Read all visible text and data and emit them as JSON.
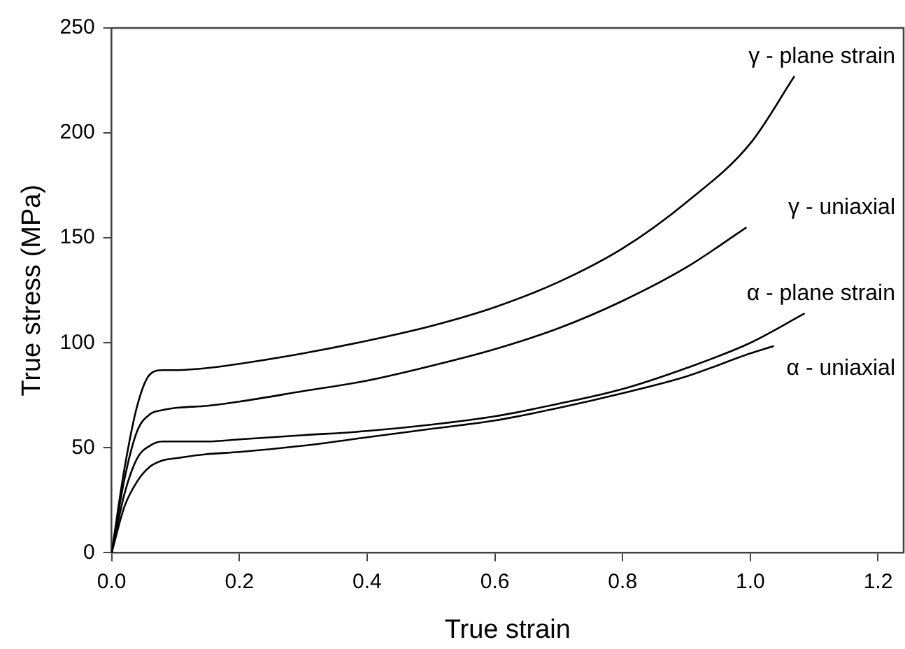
{
  "chart_data": {
    "type": "line",
    "xlabel": "True strain",
    "ylabel": "True stress (MPa)",
    "xlim": [
      0,
      1.24
    ],
    "xticks": [
      {
        "value": 0,
        "label": "0.0"
      },
      0.2,
      0.4,
      0.6,
      0.8,
      {
        "value": 1,
        "label": "1.0"
      },
      1.2
    ],
    "ylim": [
      0,
      250
    ],
    "yticks": [
      0,
      50,
      100,
      150,
      200,
      250
    ],
    "grid": false,
    "legend": false,
    "marker": "none",
    "line_style": "solid",
    "series": [
      {
        "name": "γ - plane strain",
        "color": "#000000",
        "x": [
          0,
          0.02,
          0.04,
          0.06,
          0.08,
          0.1,
          0.15,
          0.2,
          0.3,
          0.4,
          0.5,
          0.6,
          0.7,
          0.8,
          0.9,
          1.0,
          1.069
        ],
        "values": [
          0,
          40,
          70,
          85,
          87,
          87,
          88,
          90,
          95,
          101,
          108,
          117,
          129,
          145,
          167,
          195,
          227
        ]
      },
      {
        "name": "γ - uniaxial",
        "color": "#000000",
        "x": [
          0,
          0.02,
          0.04,
          0.06,
          0.08,
          0.1,
          0.15,
          0.2,
          0.3,
          0.4,
          0.5,
          0.6,
          0.7,
          0.8,
          0.9,
          0.994
        ],
        "values": [
          0,
          35,
          58,
          66,
          68,
          69,
          70,
          72,
          77,
          82,
          89,
          97,
          107,
          120,
          136,
          155
        ]
      },
      {
        "name": "α - plane strain",
        "color": "#000000",
        "x": [
          0,
          0.02,
          0.04,
          0.06,
          0.08,
          0.1,
          0.15,
          0.2,
          0.3,
          0.4,
          0.5,
          0.6,
          0.7,
          0.8,
          0.9,
          1.0,
          1.085
        ],
        "values": [
          0,
          28,
          45,
          51,
          53,
          53,
          53,
          54,
          56,
          58,
          61,
          65,
          71,
          78,
          88,
          100,
          114
        ]
      },
      {
        "name": "α - uniaxial",
        "color": "#000000",
        "x": [
          0,
          0.02,
          0.04,
          0.06,
          0.08,
          0.1,
          0.15,
          0.2,
          0.3,
          0.4,
          0.5,
          0.6,
          0.7,
          0.8,
          0.9,
          1.0,
          1.037
        ],
        "values": [
          0,
          22,
          34,
          41,
          44,
          45,
          47,
          48,
          51,
          55,
          59,
          63,
          69,
          76,
          84,
          95,
          98.5
        ]
      }
    ]
  }
}
